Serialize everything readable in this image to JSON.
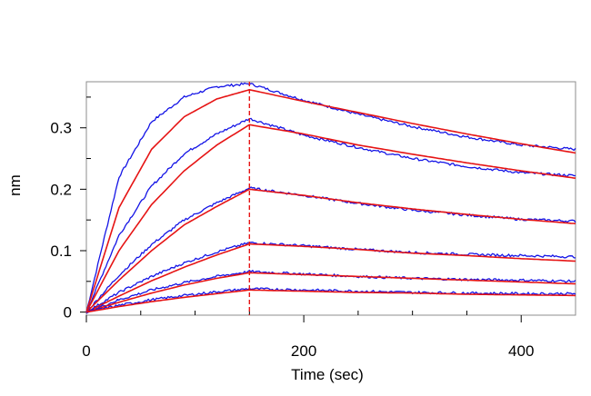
{
  "chart_data": {
    "type": "line",
    "title": "",
    "xlabel": "Time (sec)",
    "ylabel": "nm",
    "xlim": [
      0,
      450
    ],
    "ylim": [
      -0.005,
      0.375
    ],
    "x_ticks": [
      0,
      200,
      400
    ],
    "x_tick_labels": [
      "0",
      "200",
      "400"
    ],
    "y_ticks": [
      0,
      0.1,
      0.2,
      0.3
    ],
    "y_tick_labels": [
      "0",
      "0.1",
      "0.2",
      "0.3"
    ],
    "association_end_x": 150,
    "grid": false,
    "legend": "none",
    "colors": {
      "measured": "#1414e6",
      "fit": "#e61414",
      "marker": "#e61414",
      "frame": "#8c8c8c"
    },
    "series": [
      {
        "role": "measured",
        "x": [
          0,
          30,
          60,
          90,
          120,
          150,
          200,
          250,
          300,
          350,
          400,
          450
        ],
        "values": [
          0,
          0.22,
          0.31,
          0.35,
          0.367,
          0.372,
          0.345,
          0.322,
          0.302,
          0.285,
          0.272,
          0.265
        ]
      },
      {
        "role": "fit",
        "x": [
          0,
          30,
          60,
          90,
          120,
          150,
          200,
          250,
          300,
          350,
          400,
          450
        ],
        "values": [
          0,
          0.17,
          0.265,
          0.318,
          0.347,
          0.362,
          0.343,
          0.325,
          0.307,
          0.29,
          0.274,
          0.259
        ]
      },
      {
        "role": "measured",
        "x": [
          0,
          30,
          60,
          90,
          120,
          150,
          200,
          250,
          300,
          350,
          400,
          450
        ],
        "values": [
          0,
          0.125,
          0.205,
          0.258,
          0.29,
          0.315,
          0.288,
          0.268,
          0.25,
          0.237,
          0.227,
          0.222
        ]
      },
      {
        "role": "fit",
        "x": [
          0,
          30,
          60,
          90,
          120,
          150,
          200,
          250,
          300,
          350,
          400,
          450
        ],
        "values": [
          0,
          0.1,
          0.175,
          0.23,
          0.272,
          0.305,
          0.29,
          0.272,
          0.257,
          0.243,
          0.23,
          0.218
        ]
      },
      {
        "role": "measured",
        "x": [
          0,
          30,
          60,
          90,
          120,
          150,
          200,
          250,
          300,
          350,
          400,
          450
        ],
        "values": [
          0,
          0.06,
          0.11,
          0.15,
          0.178,
          0.202,
          0.19,
          0.177,
          0.166,
          0.158,
          0.151,
          0.148
        ]
      },
      {
        "role": "fit",
        "x": [
          0,
          30,
          60,
          90,
          120,
          150,
          200,
          250,
          300,
          350,
          400,
          450
        ],
        "values": [
          0,
          0.052,
          0.1,
          0.142,
          0.172,
          0.2,
          0.19,
          0.178,
          0.168,
          0.159,
          0.151,
          0.144
        ]
      },
      {
        "role": "measured",
        "x": [
          0,
          30,
          60,
          90,
          120,
          150,
          200,
          250,
          300,
          350,
          400,
          450
        ],
        "values": [
          0,
          0.032,
          0.058,
          0.08,
          0.098,
          0.113,
          0.108,
          0.102,
          0.097,
          0.094,
          0.092,
          0.09
        ]
      },
      {
        "role": "fit",
        "x": [
          0,
          30,
          60,
          90,
          120,
          150,
          200,
          250,
          300,
          350,
          400,
          450
        ],
        "values": [
          0,
          0.026,
          0.051,
          0.073,
          0.093,
          0.111,
          0.107,
          0.102,
          0.096,
          0.092,
          0.087,
          0.083
        ]
      },
      {
        "role": "measured",
        "x": [
          0,
          30,
          60,
          90,
          120,
          150,
          200,
          250,
          300,
          350,
          400,
          450
        ],
        "values": [
          0,
          0.02,
          0.036,
          0.048,
          0.058,
          0.066,
          0.062,
          0.058,
          0.055,
          0.053,
          0.052,
          0.05
        ]
      },
      {
        "role": "fit",
        "x": [
          0,
          30,
          60,
          90,
          120,
          150,
          200,
          250,
          300,
          350,
          400,
          450
        ],
        "values": [
          0,
          0.016,
          0.031,
          0.044,
          0.055,
          0.064,
          0.061,
          0.058,
          0.055,
          0.052,
          0.049,
          0.046
        ]
      },
      {
        "role": "measured",
        "x": [
          0,
          30,
          60,
          90,
          120,
          150,
          200,
          250,
          300,
          350,
          400,
          450
        ],
        "values": [
          0,
          0.011,
          0.02,
          0.027,
          0.033,
          0.038,
          0.036,
          0.034,
          0.032,
          0.031,
          0.03,
          0.03
        ]
      },
      {
        "role": "fit",
        "x": [
          0,
          30,
          60,
          90,
          120,
          150,
          200,
          250,
          300,
          350,
          400,
          450
        ],
        "values": [
          0,
          0.009,
          0.017,
          0.024,
          0.03,
          0.036,
          0.034,
          0.032,
          0.031,
          0.029,
          0.028,
          0.027
        ]
      }
    ]
  }
}
